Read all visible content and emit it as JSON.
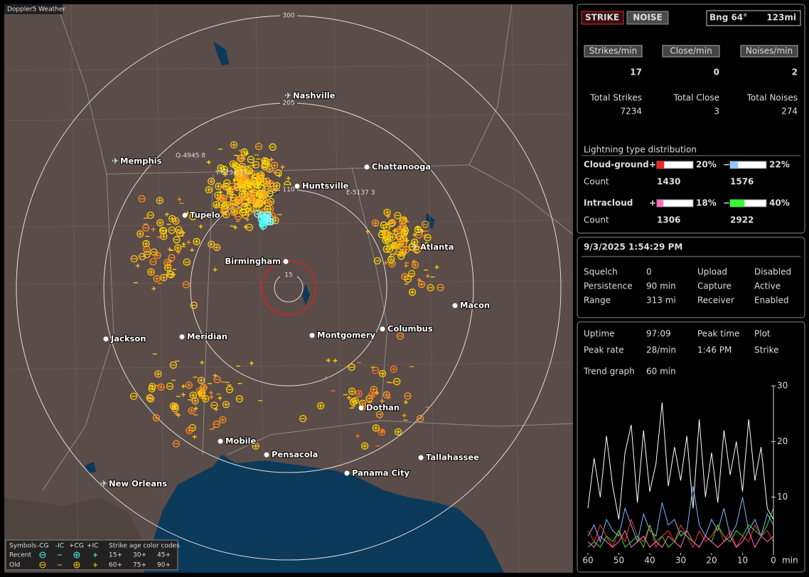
{
  "map": {
    "title": "Doppler5 Weather",
    "range_rings": [
      300,
      205,
      110,
      15
    ],
    "storm_labels": [
      "Q-4945  8",
      "Y-6234 11",
      "E-5137 3"
    ],
    "cities": [
      "Nashville",
      "Memphis",
      "Chattanooga",
      "Huntsville",
      "Tupelo",
      "Atlanta",
      "Birmingham",
      "Macon",
      "Jackson",
      "Meridian",
      "Montgomery",
      "Columbus",
      "Dothan",
      "Mobile",
      "Pensacola",
      "Tallahassee",
      "Panama City",
      "New Orleans"
    ],
    "legend": {
      "headers": [
        "Symbols",
        "-CG",
        "-IC",
        "+CG",
        "+IC",
        "Strike age color codes"
      ],
      "rows": [
        {
          "label": "Recent",
          "ages": [
            "15+",
            "30+",
            "45+"
          ]
        },
        {
          "label": "Old",
          "ages": [
            "60+",
            "75+",
            "90+"
          ]
        }
      ]
    }
  },
  "summary": {
    "mode_buttons": [
      "STRIKE",
      "NOISE"
    ],
    "bearing": "Bng 64°",
    "distance": "123mi",
    "rates": [
      {
        "label": "Strikes/min",
        "value": 17
      },
      {
        "label": "Close/min",
        "value": 0
      },
      {
        "label": "Noises/min",
        "value": 2
      }
    ],
    "totals": [
      {
        "label": "Total Strikes",
        "value": 7234
      },
      {
        "label": "Total Close",
        "value": 3
      },
      {
        "label": "Total Noises",
        "value": 274
      }
    ],
    "distribution": {
      "title": "Lightning type distribution",
      "count_label": "Count",
      "types": [
        {
          "name": "Cloud-ground",
          "pos_sign": "+",
          "neg_sign": "−",
          "pos": {
            "value": 20,
            "label": "20%"
          },
          "neg": {
            "value": 22,
            "label": "22%"
          },
          "pos_count": 1430,
          "neg_count": 1576
        },
        {
          "name": "Intracloud",
          "pos_sign": "+",
          "neg_sign": "−",
          "pos": {
            "value": 18,
            "label": "18%"
          },
          "neg": {
            "value": 40,
            "label": "40%"
          },
          "pos_count": 1306,
          "neg_count": 2922
        }
      ]
    }
  },
  "status": {
    "datetime": "9/3/2025 1:54:29 PM",
    "rows": [
      [
        "Squelch",
        "0",
        "Upload",
        "Disabled"
      ],
      [
        "Persistence",
        "90 min",
        "Capture",
        "Active"
      ],
      [
        "Range",
        "313 mi",
        "Receiver",
        "Enabled"
      ]
    ]
  },
  "stats": {
    "rows": [
      [
        "Uptime",
        "97:09",
        "Peak time",
        "Plot"
      ],
      [
        "Peak rate",
        "28/min",
        "1:46 PM",
        "Strike"
      ]
    ],
    "trend_label": "Trend graph",
    "trend_span": "60 min"
  },
  "trend": {
    "type": "line",
    "x_unit": "min",
    "xlim": [
      60,
      0
    ],
    "xticks": [
      60,
      50,
      40,
      30,
      20,
      10,
      0
    ],
    "ylim": [
      0,
      30
    ],
    "yticks": [
      10,
      20,
      30
    ],
    "x": [
      60,
      58,
      56,
      54,
      52,
      50,
      48,
      46,
      44,
      42,
      40,
      38,
      36,
      34,
      32,
      30,
      28,
      26,
      24,
      22,
      20,
      18,
      16,
      14,
      12,
      10,
      8,
      6,
      4,
      2,
      0
    ],
    "series": [
      {
        "color": "#ffffff",
        "values": [
          8,
          17,
          10,
          21,
          12,
          6,
          18,
          23,
          9,
          22,
          11,
          16,
          27,
          12,
          19,
          13,
          21,
          8,
          24,
          10,
          18,
          9,
          22,
          14,
          20,
          11,
          24,
          13,
          19,
          8,
          6
        ]
      },
      {
        "color": "#7ab8ff",
        "values": [
          3,
          5,
          2,
          6,
          4,
          3,
          8,
          5,
          2,
          7,
          4,
          3,
          9,
          5,
          6,
          3,
          4,
          12,
          5,
          3,
          6,
          4,
          8,
          3,
          5,
          10,
          4,
          6,
          3,
          7,
          5
        ]
      },
      {
        "color": "#ff3030",
        "values": [
          4,
          2,
          5,
          3,
          1,
          4,
          2,
          6,
          3,
          2,
          5,
          1,
          3,
          4,
          2,
          5,
          3,
          1,
          4,
          2,
          3,
          5,
          2,
          4,
          1,
          3,
          2,
          5,
          3,
          4,
          2
        ]
      },
      {
        "color": "#30e030",
        "values": [
          1,
          2,
          1,
          3,
          2,
          4,
          1,
          2,
          3,
          1,
          5,
          2,
          3,
          1,
          2,
          4,
          3,
          2,
          1,
          3,
          2,
          5,
          3,
          2,
          4,
          3,
          5,
          4,
          3,
          5,
          8
        ]
      },
      {
        "color": "#ff70c0",
        "values": [
          2,
          1,
          3,
          2,
          1,
          2,
          4,
          1,
          2,
          3,
          1,
          2,
          1,
          3,
          2,
          1,
          4,
          2,
          1,
          3,
          2,
          1,
          2,
          3,
          1,
          2,
          4,
          1,
          3,
          2,
          3
        ]
      }
    ]
  }
}
